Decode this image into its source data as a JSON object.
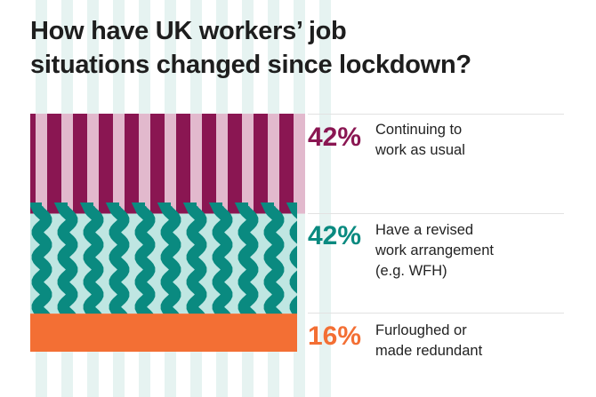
{
  "colors": {
    "background_stripe": "#e6f3f1",
    "continuing_dark": "#8a1652",
    "continuing_light": "#e2b9cd",
    "revised_dark": "#0a8a80",
    "revised_light": "#bfe6e2",
    "furloughed": "#f36f34",
    "title_text": "#1e1e1e"
  },
  "title_lines": [
    "How have UK workers’ job",
    "situations changed since lockdown?"
  ],
  "chart_data": {
    "type": "bar",
    "categories": [
      "Continuing to work as usual",
      "Have a revised work arrangement (e.g. WFH)",
      "Furloughed or made redundant"
    ],
    "values": [
      42,
      42,
      16
    ],
    "value_labels": [
      "42%",
      "42%",
      "16%"
    ],
    "label_lines": [
      [
        "Continuing to",
        "work as usual"
      ],
      [
        "Have a revised",
        "work arrangement",
        "(e.g. WFH)"
      ],
      [
        "Furloughed or",
        "made redundant"
      ]
    ],
    "colors": [
      "#8a1652",
      "#0a8a80",
      "#f36f34"
    ],
    "patterns": [
      "vertical-stripes",
      "wavy-stripes",
      "solid"
    ]
  }
}
